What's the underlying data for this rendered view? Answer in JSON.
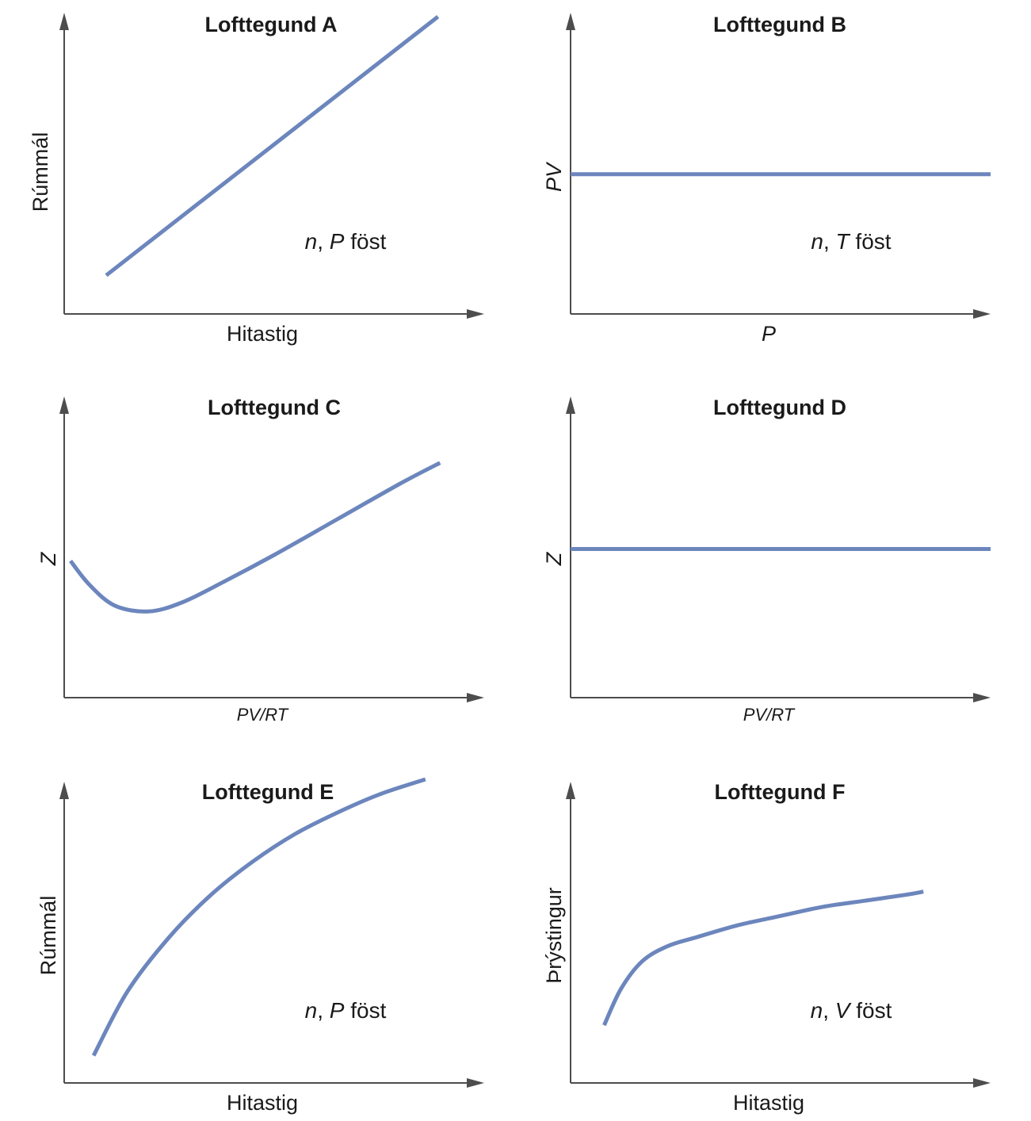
{
  "chart_data": [
    {
      "type": "line",
      "title": "Lofttegund A",
      "xlabel": "Hitastig",
      "ylabel": "Rúmmál",
      "annotation": {
        "var1": "n",
        "var2": "P",
        "word": "föst"
      },
      "xlim": [
        0,
        10
      ],
      "ylim": [
        0,
        10
      ],
      "series": [
        {
          "x": [
            1,
            8.9
          ],
          "y": [
            1.3,
            10
          ]
        }
      ],
      "line_color": "#6c86bd"
    },
    {
      "type": "line",
      "title": "Lofttegund B",
      "xlabel": "P",
      "ylabel": "PV",
      "annotation": {
        "var1": "n",
        "var2": "T",
        "word": "föst"
      },
      "xlim": [
        0,
        10
      ],
      "ylim": [
        0,
        10
      ],
      "series": [
        {
          "x": [
            0,
            10
          ],
          "y": [
            4.7,
            4.7
          ]
        }
      ],
      "line_color": "#6c86bd"
    },
    {
      "type": "line",
      "title": "Lofttegund C",
      "xlabel": "PV/RT",
      "ylabel": "Z",
      "xlim": [
        0,
        10
      ],
      "ylim": [
        0,
        10
      ],
      "series": [
        {
          "x": [
            0.15,
            0.6,
            1.2,
            2.0,
            2.8,
            3.8,
            5.0,
            6.5,
            8.0,
            8.95
          ],
          "y": [
            4.6,
            3.8,
            3.1,
            2.9,
            3.2,
            3.9,
            4.8,
            6.0,
            7.2,
            7.9
          ]
        }
      ],
      "line_color": "#6c86bd"
    },
    {
      "type": "line",
      "title": "Lofttegund D",
      "xlabel": "PV/RT",
      "ylabel": "Z",
      "xlim": [
        0,
        10
      ],
      "ylim": [
        0,
        10
      ],
      "series": [
        {
          "x": [
            0,
            10
          ],
          "y": [
            5.0,
            5.0
          ]
        }
      ],
      "line_color": "#6c86bd"
    },
    {
      "type": "line",
      "title": "Lofttegund E",
      "xlabel": "Hitastig",
      "ylabel": "Rúmmál",
      "annotation": {
        "var1": "n",
        "var2": "P",
        "word": "föst"
      },
      "xlim": [
        0,
        10
      ],
      "ylim": [
        0,
        10
      ],
      "series": [
        {
          "x": [
            0.7,
            1.5,
            2.5,
            3.5,
            4.5,
            5.5,
            6.5,
            7.5,
            8.6
          ],
          "y": [
            0.9,
            3.0,
            4.8,
            6.2,
            7.3,
            8.2,
            8.9,
            9.5,
            10.0
          ]
        }
      ],
      "line_color": "#6c86bd"
    },
    {
      "type": "line",
      "title": "Lofttegund F",
      "xlabel": "Hitastig",
      "ylabel": "Þrýstingur",
      "annotation": {
        "var1": "n",
        "var2": "V",
        "word": "föst"
      },
      "xlim": [
        0,
        10
      ],
      "ylim": [
        0,
        10
      ],
      "series": [
        {
          "x": [
            0.8,
            1.2,
            1.7,
            2.3,
            3.0,
            4.0,
            5.0,
            6.0,
            7.0,
            8.0,
            8.4
          ],
          "y": [
            1.9,
            3.1,
            4.0,
            4.5,
            4.8,
            5.2,
            5.5,
            5.8,
            6.0,
            6.2,
            6.3
          ]
        }
      ],
      "line_color": "#6c86bd"
    }
  ]
}
